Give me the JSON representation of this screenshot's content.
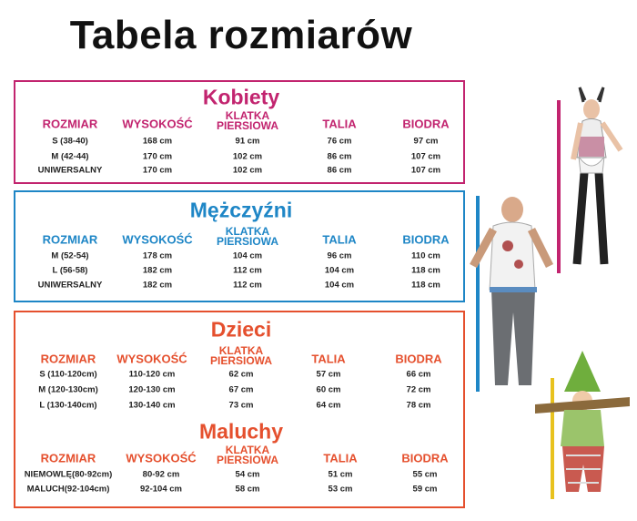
{
  "title": "Tabela rozmiarów",
  "colors": {
    "kobiety": "#c2246f",
    "mezczyzni": "#1e86c6",
    "dzieci": "#e5502e"
  },
  "columns": [
    "ROZMIAR",
    "WYSOKOŚĆ",
    "KLATKA PIERSIOWA",
    "TALIA",
    "BIODRA"
  ],
  "sections": [
    {
      "title": "Kobiety",
      "color": "#c2246f",
      "rows": [
        [
          "S (38-40)",
          "168 cm",
          "91 cm",
          "76 cm",
          "97 cm"
        ],
        [
          "M (42-44)",
          "170 cm",
          "102 cm",
          "86 cm",
          "107 cm"
        ],
        [
          "UNIWERSALNY",
          "170 cm",
          "102 cm",
          "86 cm",
          "107 cm"
        ]
      ]
    },
    {
      "title": "Mężczyźni",
      "color": "#1e86c6",
      "rows": [
        [
          "M (52-54)",
          "178 cm",
          "104 cm",
          "96 cm",
          "110 cm"
        ],
        [
          "L (56-58)",
          "182 cm",
          "112 cm",
          "104 cm",
          "118 cm"
        ],
        [
          "UNIWERSALNY",
          "182 cm",
          "112 cm",
          "104 cm",
          "118 cm"
        ]
      ]
    },
    {
      "title": "Dzieci",
      "color": "#e5502e",
      "rows": [
        [
          "S (110-120cm)",
          "110-120 cm",
          "62 cm",
          "57 cm",
          "66 cm"
        ],
        [
          "M (120-130cm)",
          "120-130 cm",
          "67 cm",
          "60 cm",
          "72 cm"
        ],
        [
          "L  (130-140cm)",
          "130-140 cm",
          "73 cm",
          "64 cm",
          "78 cm"
        ]
      ]
    },
    {
      "title": "Maluchy",
      "color": "#e5502e",
      "rows": [
        [
          "NIEMOWLĘ(80-92cm)",
          "80-92 cm",
          "54 cm",
          "51 cm",
          "55 cm"
        ],
        [
          "MALUCH(92-104cm)",
          "92-104 cm",
          "58 cm",
          "53 cm",
          "59 cm"
        ]
      ]
    }
  ]
}
